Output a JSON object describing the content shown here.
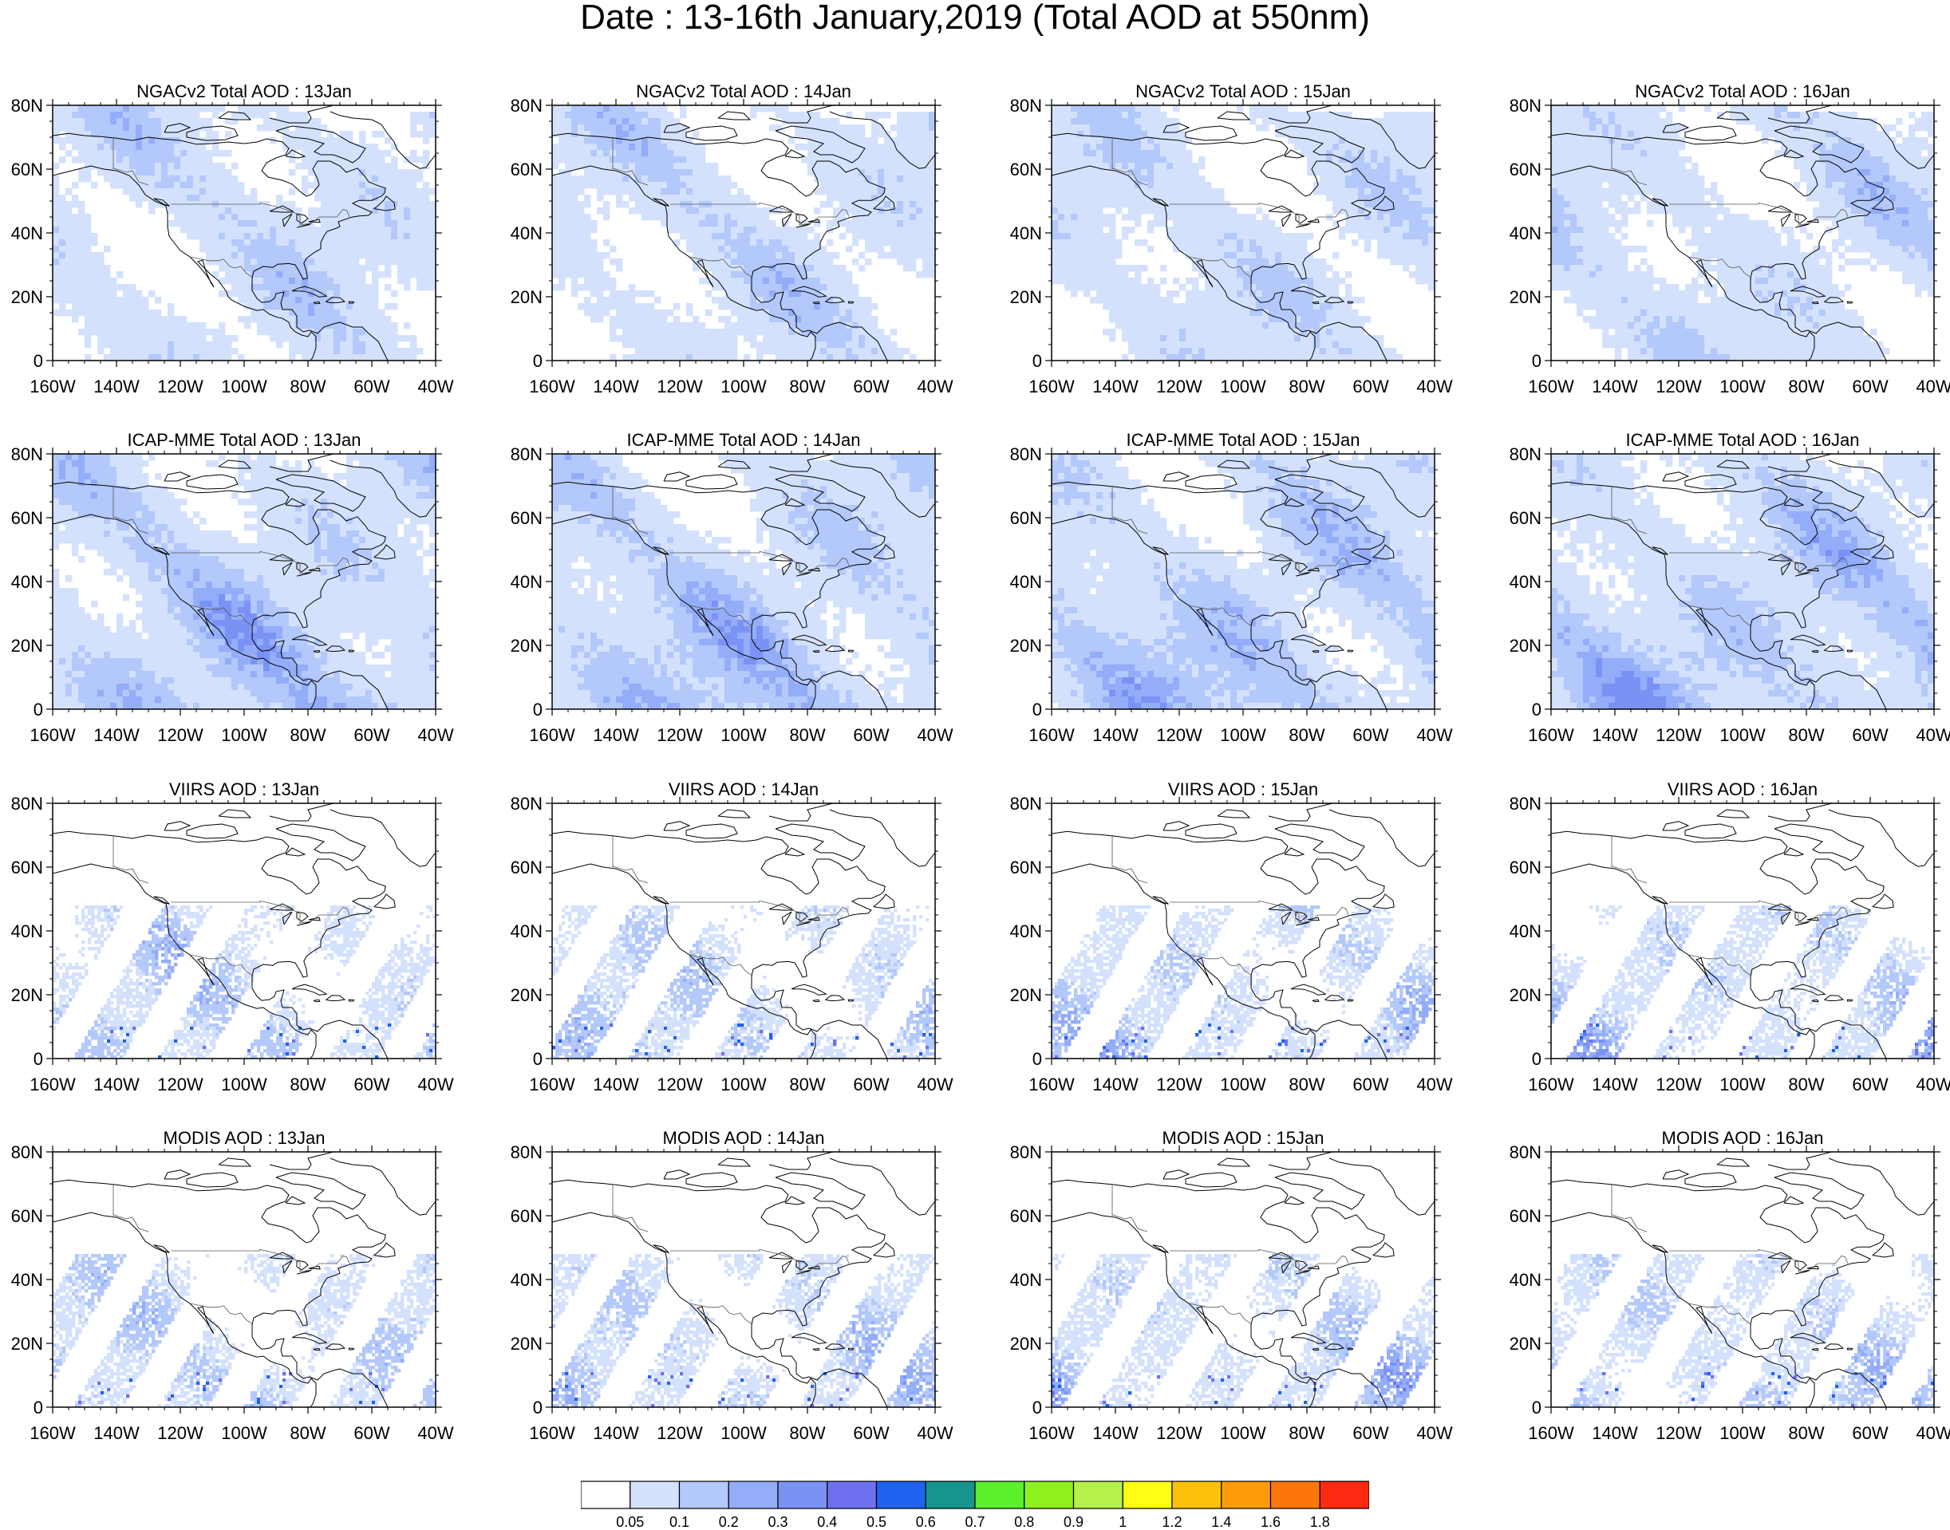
{
  "figure": {
    "title": "Date : 13-16th January,2019 (Total AOD at 550nm)"
  },
  "rows": [
    {
      "product": "NGACv2 Total AOD",
      "titles": [
        "NGACv2 Total AOD : 13Jan",
        "NGACv2 Total AOD : 14Jan",
        "NGACv2 Total AOD : 15Jan",
        "NGACv2 Total AOD : 16Jan"
      ],
      "coverage": "full"
    },
    {
      "product": "ICAP-MME Total AOD",
      "titles": [
        "ICAP-MME Total AOD : 13Jan",
        "ICAP-MME Total AOD : 14Jan",
        "ICAP-MME Total AOD : 15Jan",
        "ICAP-MME Total AOD : 16Jan"
      ],
      "coverage": "full"
    },
    {
      "product": "VIIRS AOD",
      "titles": [
        "VIIRS AOD : 13Jan",
        "VIIRS AOD : 14Jan",
        "VIIRS AOD : 15Jan",
        "VIIRS AOD : 16Jan"
      ],
      "coverage": "swaths"
    },
    {
      "product": "MODIS AOD",
      "titles": [
        "MODIS AOD : 13Jan",
        "MODIS AOD : 14Jan",
        "MODIS AOD : 15Jan",
        "MODIS AOD : 16Jan"
      ],
      "coverage": "swaths"
    }
  ],
  "map": {
    "lon_range": [
      -160,
      -40
    ],
    "lat_range": [
      0,
      80
    ],
    "lat_ticks": [
      {
        "value": 80,
        "label": "80N"
      },
      {
        "value": 60,
        "label": "60N"
      },
      {
        "value": 40,
        "label": "40N"
      },
      {
        "value": 20,
        "label": "20N"
      },
      {
        "value": 0,
        "label": "0"
      }
    ],
    "lon_ticks": [
      {
        "value": -160,
        "label": "160W"
      },
      {
        "value": -140,
        "label": "140W"
      },
      {
        "value": -120,
        "label": "120W"
      },
      {
        "value": -100,
        "label": "100W"
      },
      {
        "value": -80,
        "label": "80W"
      },
      {
        "value": -60,
        "label": "60W"
      },
      {
        "value": -40,
        "label": "40W"
      }
    ]
  },
  "colorbar": {
    "colors": [
      "#ffffff",
      "#d4e1fd",
      "#b3c8fb",
      "#94adf9",
      "#7b92f5",
      "#6d71ef",
      "#1f62ef",
      "#16958f",
      "#5af02c",
      "#8ef01c",
      "#b6f04a",
      "#fffd13",
      "#fdc10c",
      "#fd9c0a",
      "#fd7609",
      "#fd2a12"
    ],
    "labels": [
      "0.05",
      "0.1",
      "0.2",
      "0.3",
      "0.4",
      "0.5",
      "0.6",
      "0.7",
      "0.8",
      "0.9",
      "1",
      "1.2",
      "1.4",
      "1.6",
      "1.8"
    ]
  }
}
